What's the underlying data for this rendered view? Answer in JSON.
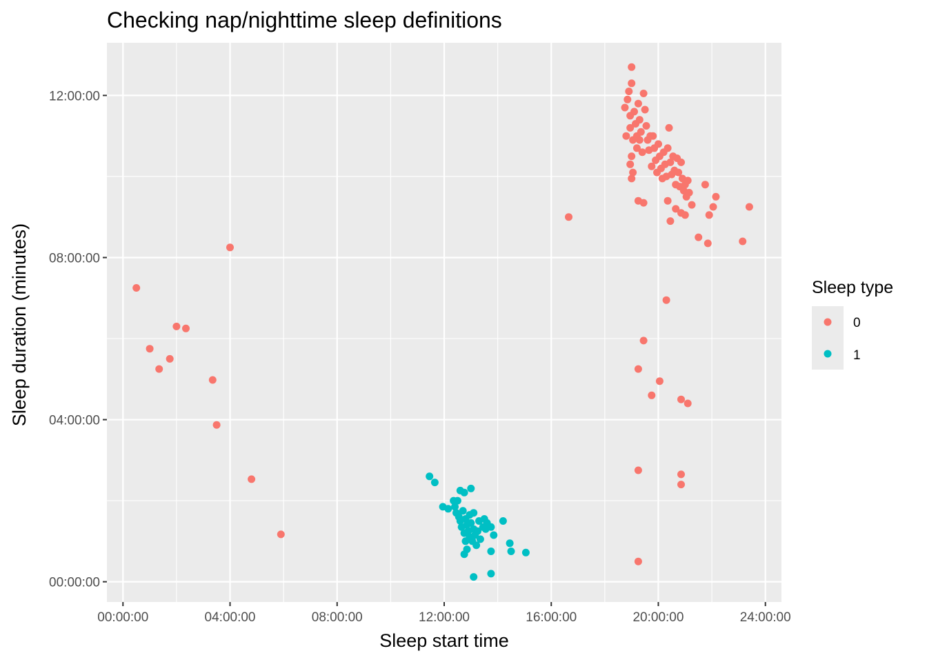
{
  "chart_data": {
    "type": "scatter",
    "title": "Checking nap/nighttime sleep definitions",
    "xlabel": "Sleep start time",
    "ylabel": "Sleep duration (minutes)",
    "x_unit": "hours",
    "y_unit": "hours",
    "xlim": [
      -0.6,
      24.6
    ],
    "ylim": [
      -0.5,
      13.3
    ],
    "x_ticks": [
      {
        "value": 0,
        "label": "00:00:00"
      },
      {
        "value": 4,
        "label": "04:00:00"
      },
      {
        "value": 8,
        "label": "08:00:00"
      },
      {
        "value": 12,
        "label": "12:00:00"
      },
      {
        "value": 16,
        "label": "16:00:00"
      },
      {
        "value": 20,
        "label": "20:00:00"
      },
      {
        "value": 24,
        "label": "24:00:00"
      }
    ],
    "y_ticks": [
      {
        "value": 0,
        "label": "00:00:00"
      },
      {
        "value": 4,
        "label": "04:00:00"
      },
      {
        "value": 8,
        "label": "08:00:00"
      },
      {
        "value": 12,
        "label": "12:00:00"
      }
    ],
    "grid": true,
    "legend": {
      "title": "Sleep type",
      "position": "right"
    },
    "series": [
      {
        "name": "0",
        "color": "#F8766D",
        "points": [
          [
            0.5,
            7.25
          ],
          [
            1.0,
            5.75
          ],
          [
            1.35,
            5.25
          ],
          [
            1.75,
            5.5
          ],
          [
            2.0,
            6.3
          ],
          [
            2.35,
            6.25
          ],
          [
            3.35,
            4.98
          ],
          [
            3.5,
            3.87
          ],
          [
            4.0,
            8.25
          ],
          [
            4.8,
            2.53
          ],
          [
            5.9,
            1.17
          ],
          [
            16.65,
            9.0
          ],
          [
            18.75,
            11.7
          ],
          [
            18.8,
            11.0
          ],
          [
            18.85,
            11.9
          ],
          [
            18.9,
            12.1
          ],
          [
            18.95,
            11.5
          ],
          [
            19.0,
            12.7
          ],
          [
            19.0,
            12.3
          ],
          [
            18.95,
            11.2
          ],
          [
            19.05,
            10.9
          ],
          [
            19.0,
            10.5
          ],
          [
            18.95,
            10.3
          ],
          [
            19.05,
            10.1
          ],
          [
            19.0,
            9.95
          ],
          [
            19.1,
            11.6
          ],
          [
            19.15,
            11.3
          ],
          [
            19.2,
            11.0
          ],
          [
            19.2,
            10.7
          ],
          [
            19.25,
            11.8
          ],
          [
            19.3,
            11.4
          ],
          [
            19.3,
            10.9
          ],
          [
            19.35,
            11.1
          ],
          [
            19.4,
            10.6
          ],
          [
            19.45,
            12.05
          ],
          [
            19.5,
            11.65
          ],
          [
            19.55,
            11.25
          ],
          [
            19.6,
            10.9
          ],
          [
            19.65,
            10.65
          ],
          [
            19.7,
            11.0
          ],
          [
            19.75,
            10.25
          ],
          [
            19.8,
            11.0
          ],
          [
            19.85,
            10.7
          ],
          [
            19.9,
            10.4
          ],
          [
            19.95,
            10.1
          ],
          [
            20.0,
            10.8
          ],
          [
            20.05,
            10.5
          ],
          [
            20.1,
            10.2
          ],
          [
            20.15,
            9.95
          ],
          [
            20.2,
            10.6
          ],
          [
            20.25,
            10.3
          ],
          [
            20.3,
            10.0
          ],
          [
            20.35,
            10.7
          ],
          [
            20.4,
            11.2
          ],
          [
            20.45,
            10.35
          ],
          [
            20.5,
            10.05
          ],
          [
            20.55,
            10.5
          ],
          [
            20.6,
            10.15
          ],
          [
            20.65,
            9.8
          ],
          [
            20.7,
            10.45
          ],
          [
            20.75,
            10.1
          ],
          [
            20.8,
            9.75
          ],
          [
            20.85,
            10.35
          ],
          [
            20.9,
            9.95
          ],
          [
            20.95,
            9.65
          ],
          [
            21.0,
            9.8
          ],
          [
            21.05,
            9.5
          ],
          [
            21.1,
            9.9
          ],
          [
            21.15,
            9.6
          ],
          [
            21.25,
            9.3
          ],
          [
            21.0,
            9.05
          ],
          [
            21.5,
            8.5
          ],
          [
            21.75,
            9.8
          ],
          [
            21.85,
            8.35
          ],
          [
            21.9,
            9.05
          ],
          [
            22.05,
            9.25
          ],
          [
            22.15,
            9.5
          ],
          [
            23.15,
            8.4
          ],
          [
            23.4,
            9.25
          ],
          [
            19.25,
            9.4
          ],
          [
            19.45,
            9.35
          ],
          [
            20.35,
            9.4
          ],
          [
            20.45,
            8.9
          ],
          [
            20.65,
            9.2
          ],
          [
            20.85,
            9.1
          ],
          [
            19.25,
            5.25
          ],
          [
            19.45,
            5.95
          ],
          [
            20.3,
            6.95
          ],
          [
            19.75,
            4.6
          ],
          [
            20.05,
            4.95
          ],
          [
            20.85,
            4.5
          ],
          [
            21.1,
            4.4
          ],
          [
            19.25,
            2.75
          ],
          [
            20.85,
            2.65
          ],
          [
            20.85,
            2.4
          ],
          [
            19.25,
            0.5
          ]
        ]
      },
      {
        "name": "1",
        "color": "#00BFC4",
        "points": [
          [
            11.45,
            2.6
          ],
          [
            11.65,
            2.45
          ],
          [
            11.95,
            1.85
          ],
          [
            12.15,
            1.8
          ],
          [
            12.35,
            2.0
          ],
          [
            12.4,
            1.85
          ],
          [
            12.45,
            1.7
          ],
          [
            12.5,
            2.0
          ],
          [
            12.55,
            1.6
          ],
          [
            12.6,
            1.5
          ],
          [
            12.6,
            2.25
          ],
          [
            12.65,
            1.35
          ],
          [
            12.7,
            1.75
          ],
          [
            12.75,
            1.2
          ],
          [
            12.75,
            2.2
          ],
          [
            12.8,
            1.55
          ],
          [
            12.8,
            1.0
          ],
          [
            12.85,
            1.4
          ],
          [
            12.85,
            0.8
          ],
          [
            12.9,
            1.25
          ],
          [
            12.95,
            1.65
          ],
          [
            12.95,
            1.1
          ],
          [
            13.0,
            1.45
          ],
          [
            13.0,
            2.3
          ],
          [
            13.05,
            1.0
          ],
          [
            13.1,
            1.3
          ],
          [
            13.1,
            1.7
          ],
          [
            13.15,
            1.15
          ],
          [
            13.2,
            0.9
          ],
          [
            13.25,
            1.25
          ],
          [
            13.3,
            1.5
          ],
          [
            13.35,
            1.05
          ],
          [
            13.45,
            1.35
          ],
          [
            13.5,
            1.55
          ],
          [
            13.55,
            1.3
          ],
          [
            13.6,
            1.45
          ],
          [
            13.75,
            1.35
          ],
          [
            13.85,
            1.15
          ],
          [
            14.2,
            1.5
          ],
          [
            14.45,
            0.95
          ],
          [
            14.5,
            0.75
          ],
          [
            13.75,
            0.75
          ],
          [
            15.05,
            0.72
          ],
          [
            12.75,
            0.68
          ],
          [
            13.75,
            0.2
          ],
          [
            13.1,
            0.12
          ]
        ]
      }
    ]
  }
}
